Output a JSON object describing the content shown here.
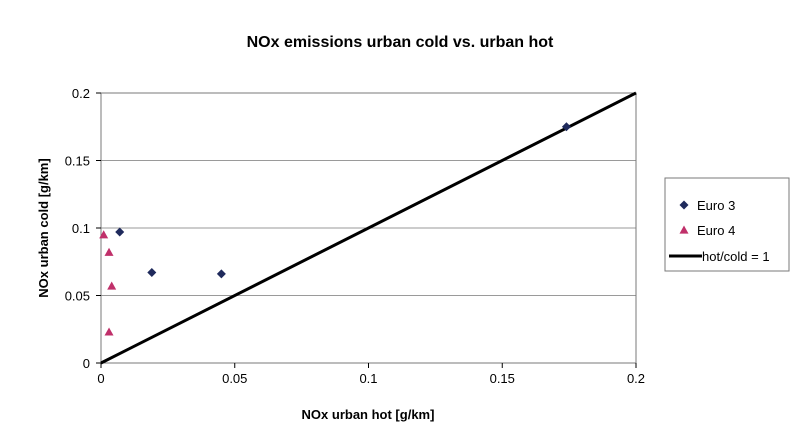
{
  "chart_data": {
    "type": "scatter",
    "title": "NOx emissions urban cold vs. urban hot",
    "xlabel": "NOx urban hot [g/km]",
    "ylabel": "NOx urban cold [g/km]",
    "xlim": [
      0,
      0.2
    ],
    "ylim": [
      0,
      0.2
    ],
    "x_ticks": [
      "0",
      "0.05",
      "0.1",
      "0.15",
      "0.2"
    ],
    "y_ticks": [
      "0",
      "0.05",
      "0.1",
      "0.15",
      "0.2"
    ],
    "grid": "horizontal",
    "legend_position": "right",
    "series": [
      {
        "name": "Euro 3",
        "marker": "diamond",
        "color": "#1f2a5c",
        "points": [
          {
            "x": 0.007,
            "y": 0.097
          },
          {
            "x": 0.019,
            "y": 0.067
          },
          {
            "x": 0.045,
            "y": 0.066
          },
          {
            "x": 0.174,
            "y": 0.175
          }
        ]
      },
      {
        "name": "Euro 4",
        "marker": "triangle",
        "color": "#c0306a",
        "points": [
          {
            "x": 0.001,
            "y": 0.095
          },
          {
            "x": 0.003,
            "y": 0.082
          },
          {
            "x": 0.004,
            "y": 0.057
          },
          {
            "x": 0.003,
            "y": 0.023
          }
        ]
      },
      {
        "name": "hot/cold = 1",
        "marker": "line",
        "color": "#000000",
        "points": [
          {
            "x": 0,
            "y": 0
          },
          {
            "x": 0.2,
            "y": 0.2
          }
        ]
      }
    ]
  }
}
